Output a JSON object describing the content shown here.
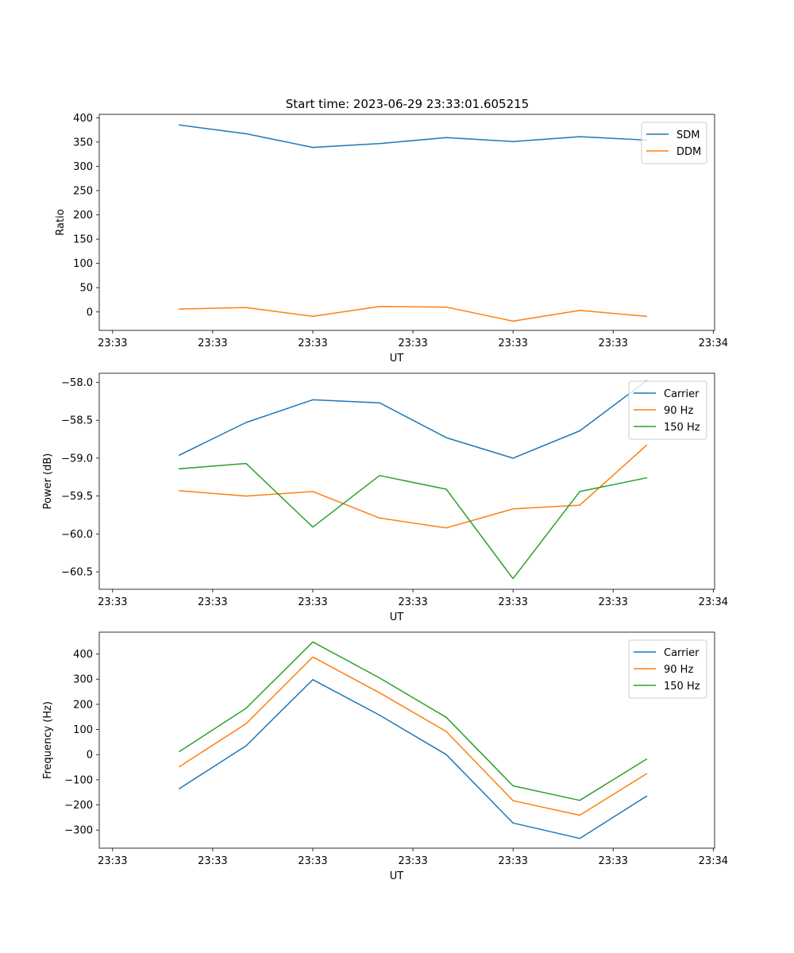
{
  "figure_title": "Start time: 2023-06-29 23:33:01.605215",
  "colors": {
    "blue": "#1f77b4",
    "orange": "#ff7f0e",
    "green": "#2ca02c"
  },
  "chart_data": [
    {
      "type": "line",
      "xlabel": "UT",
      "ylabel": "Ratio",
      "x": [
        1,
        2,
        3,
        4,
        5,
        6,
        7,
        8
      ],
      "x_ticks": [
        {
          "pos": 0,
          "label": "23:33"
        },
        {
          "pos": 1.5,
          "label": "23:33"
        },
        {
          "pos": 3,
          "label": "23:33"
        },
        {
          "pos": 4.5,
          "label": "23:33"
        },
        {
          "pos": 6,
          "label": "23:33"
        },
        {
          "pos": 7.5,
          "label": "23:33"
        },
        {
          "pos": 9,
          "label": "23:34"
        }
      ],
      "xlim": [
        -0.2,
        9.02
      ],
      "ylim": [
        -38,
        407
      ],
      "y_ticks": [
        0,
        50,
        100,
        150,
        200,
        250,
        300,
        350,
        400
      ],
      "legend": "upper right",
      "series": [
        {
          "name": "SDM",
          "color": "#1f77b4",
          "values": [
            385,
            367,
            339,
            347,
            359,
            351,
            361,
            354
          ]
        },
        {
          "name": "DDM",
          "color": "#ff7f0e",
          "values": [
            6,
            9,
            -9,
            11,
            10,
            -19,
            3,
            -9
          ]
        }
      ]
    },
    {
      "type": "line",
      "xlabel": "UT",
      "ylabel": "Power (dB)",
      "x": [
        1,
        2,
        3,
        4,
        5,
        6,
        7,
        8
      ],
      "x_ticks": [
        {
          "pos": 0,
          "label": "23:33"
        },
        {
          "pos": 1.5,
          "label": "23:33"
        },
        {
          "pos": 3,
          "label": "23:33"
        },
        {
          "pos": 4.5,
          "label": "23:33"
        },
        {
          "pos": 6,
          "label": "23:33"
        },
        {
          "pos": 7.5,
          "label": "23:33"
        },
        {
          "pos": 9,
          "label": "23:34"
        }
      ],
      "xlim": [
        -0.2,
        9.02
      ],
      "ylim": [
        -60.73,
        -57.88
      ],
      "y_ticks": [
        -60.5,
        -60.0,
        -59.5,
        -59.0,
        -58.5,
        -58.0
      ],
      "y_tick_labels": [
        "−60.5",
        "−60.0",
        "−59.5",
        "−59.0",
        "−58.5",
        "−58.0"
      ],
      "legend": "upper right",
      "series": [
        {
          "name": "Carrier",
          "color": "#1f77b4",
          "values": [
            -58.96,
            -58.53,
            -58.23,
            -58.27,
            -58.73,
            -59.0,
            -58.64,
            -57.98
          ]
        },
        {
          "name": "90 Hz",
          "color": "#ff7f0e",
          "values": [
            -59.43,
            -59.5,
            -59.44,
            -59.79,
            -59.92,
            -59.67,
            -59.62,
            -58.83
          ]
        },
        {
          "name": "150 Hz",
          "color": "#2ca02c",
          "values": [
            -59.14,
            -59.07,
            -59.91,
            -59.23,
            -59.41,
            -60.59,
            -59.44,
            -59.26
          ]
        }
      ]
    },
    {
      "type": "line",
      "xlabel": "UT",
      "ylabel": "Frequency (Hz)",
      "x": [
        1,
        2,
        3,
        4,
        5,
        6,
        7,
        8
      ],
      "x_ticks": [
        {
          "pos": 0,
          "label": "23:33"
        },
        {
          "pos": 1.5,
          "label": "23:33"
        },
        {
          "pos": 3,
          "label": "23:33"
        },
        {
          "pos": 4.5,
          "label": "23:33"
        },
        {
          "pos": 6,
          "label": "23:33"
        },
        {
          "pos": 7.5,
          "label": "23:33"
        },
        {
          "pos": 9,
          "label": "23:34"
        }
      ],
      "xlim": [
        -0.2,
        9.02
      ],
      "ylim": [
        -372,
        487
      ],
      "y_ticks": [
        -300,
        -200,
        -100,
        0,
        100,
        200,
        300,
        400
      ],
      "y_tick_labels": [
        "−300",
        "−200",
        "−100",
        "0",
        "100",
        "200",
        "300",
        "400"
      ],
      "legend": "upper right",
      "series": [
        {
          "name": "Carrier",
          "color": "#1f77b4",
          "values": [
            -135,
            35,
            298,
            157,
            0,
            -272,
            -333,
            -165
          ]
        },
        {
          "name": "90 Hz",
          "color": "#ff7f0e",
          "values": [
            -48,
            123,
            388,
            246,
            92,
            -183,
            -241,
            -76
          ]
        },
        {
          "name": "150 Hz",
          "color": "#2ca02c",
          "values": [
            12,
            184,
            448,
            305,
            148,
            -124,
            -182,
            -18
          ]
        }
      ]
    }
  ]
}
